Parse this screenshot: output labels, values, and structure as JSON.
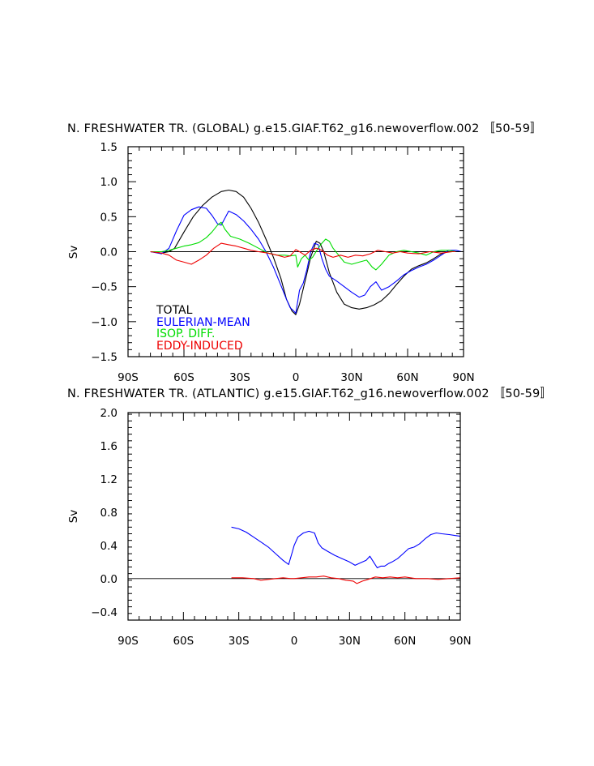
{
  "chart_data": [
    {
      "type": "line",
      "title": "N. FRESHWATER TR. (GLOBAL) g.e15.GIAF.T62_g16.newoverflow.002 〚50-59〛",
      "xlabel": "",
      "ylabel": "Sv",
      "xlim": [
        -90,
        90
      ],
      "ylim": [
        -1.5,
        1.5
      ],
      "yticks": [
        -1.5,
        -1.0,
        -0.5,
        0.0,
        0.5,
        1.0,
        1.5
      ],
      "ytick_labels": [
        "−1.5",
        "−1.0",
        "−0.5",
        "0.0",
        "0.5",
        "1.0",
        "1.5"
      ],
      "xticks": [
        -90,
        -60,
        -30,
        0,
        30,
        60,
        90
      ],
      "xtick_labels": [
        "90S",
        "60S",
        "30S",
        "0",
        "30N",
        "60N",
        "90N"
      ],
      "legend_position": "bottom-left",
      "series": [
        {
          "name": "TOTAL",
          "color": "#000000",
          "x": [
            -78,
            -72,
            -68,
            -65,
            -60,
            -55,
            -50,
            -45,
            -40,
            -36,
            -32,
            -28,
            -24,
            -20,
            -16,
            -12,
            -8,
            -5,
            -2,
            0,
            2,
            5,
            8,
            11,
            13,
            15,
            18,
            22,
            26,
            30,
            34,
            38,
            42,
            46,
            50,
            54,
            58,
            62,
            66,
            70,
            74,
            78,
            82,
            86,
            89
          ],
          "y": [
            0.0,
            -0.02,
            0.0,
            0.05,
            0.28,
            0.5,
            0.66,
            0.78,
            0.86,
            0.88,
            0.86,
            0.78,
            0.62,
            0.42,
            0.18,
            -0.08,
            -0.38,
            -0.68,
            -0.85,
            -0.9,
            -0.75,
            -0.42,
            -0.08,
            0.15,
            0.12,
            0.0,
            -0.3,
            -0.58,
            -0.75,
            -0.8,
            -0.82,
            -0.8,
            -0.76,
            -0.7,
            -0.6,
            -0.47,
            -0.35,
            -0.25,
            -0.2,
            -0.16,
            -0.1,
            -0.03,
            0.0,
            0.0,
            0.0
          ]
        },
        {
          "name": "EULERIAN-MEAN",
          "color": "#0000ff",
          "x": [
            -78,
            -72,
            -68,
            -64,
            -60,
            -56,
            -52,
            -48,
            -45,
            -42,
            -40,
            -38,
            -36,
            -32,
            -28,
            -24,
            -20,
            -16,
            -12,
            -8,
            -5,
            -3,
            -1,
            0,
            2,
            4,
            6,
            8,
            10,
            12,
            14,
            16,
            18,
            22,
            26,
            30,
            34,
            37,
            40,
            43,
            46,
            50,
            54,
            58,
            62,
            66,
            70,
            74,
            78,
            82,
            86,
            89
          ],
          "y": [
            0.0,
            -0.03,
            0.05,
            0.3,
            0.52,
            0.6,
            0.64,
            0.62,
            0.52,
            0.4,
            0.38,
            0.48,
            0.58,
            0.53,
            0.44,
            0.32,
            0.18,
            0.0,
            -0.22,
            -0.48,
            -0.68,
            -0.8,
            -0.85,
            -0.88,
            -0.55,
            -0.45,
            -0.25,
            0.0,
            0.12,
            0.1,
            -0.1,
            -0.25,
            -0.35,
            -0.42,
            -0.5,
            -0.58,
            -0.65,
            -0.62,
            -0.5,
            -0.43,
            -0.55,
            -0.5,
            -0.42,
            -0.33,
            -0.27,
            -0.22,
            -0.18,
            -0.12,
            -0.05,
            0.02,
            0.02,
            0.0
          ]
        },
        {
          "name": "ISOP. DIFF.",
          "color": "#00dd00",
          "x": [
            -78,
            -72,
            -68,
            -64,
            -60,
            -56,
            -52,
            -48,
            -45,
            -42,
            -40,
            -38,
            -35,
            -30,
            -25,
            -20,
            -15,
            -10,
            -6,
            -3,
            0,
            1,
            3,
            5,
            7,
            9,
            12,
            14,
            16,
            18,
            20,
            23,
            26,
            30,
            34,
            38,
            41,
            43,
            46,
            50,
            54,
            58,
            62,
            66,
            70,
            74,
            78,
            82,
            86,
            89
          ],
          "y": [
            0.0,
            0.0,
            0.02,
            0.05,
            0.08,
            0.1,
            0.13,
            0.2,
            0.28,
            0.38,
            0.42,
            0.32,
            0.22,
            0.18,
            0.12,
            0.05,
            -0.02,
            -0.05,
            -0.05,
            -0.06,
            -0.05,
            -0.22,
            -0.1,
            -0.05,
            -0.12,
            -0.08,
            0.05,
            0.12,
            0.18,
            0.15,
            0.05,
            -0.05,
            -0.15,
            -0.18,
            -0.15,
            -0.12,
            -0.22,
            -0.26,
            -0.18,
            -0.05,
            0.0,
            0.02,
            0.0,
            -0.02,
            -0.05,
            0.0,
            0.02,
            0.02,
            0.0,
            0.0
          ]
        },
        {
          "name": "EDDY-INDUCED",
          "color": "#ee0000",
          "x": [
            -78,
            -72,
            -68,
            -64,
            -60,
            -56,
            -52,
            -48,
            -44,
            -40,
            -36,
            -32,
            -28,
            -24,
            -20,
            -15,
            -10,
            -6,
            -3,
            0,
            2,
            5,
            8,
            11,
            14,
            17,
            20,
            24,
            28,
            32,
            36,
            40,
            44,
            48,
            52,
            56,
            60,
            66,
            72,
            78,
            84,
            89
          ],
          "y": [
            0.0,
            -0.02,
            -0.05,
            -0.12,
            -0.15,
            -0.18,
            -0.12,
            -0.05,
            0.05,
            0.12,
            0.1,
            0.08,
            0.05,
            0.02,
            0.0,
            -0.02,
            -0.05,
            -0.08,
            -0.06,
            0.03,
            0.0,
            -0.05,
            0.02,
            0.05,
            0.02,
            -0.05,
            -0.08,
            -0.05,
            -0.08,
            -0.05,
            -0.06,
            -0.03,
            0.02,
            0.0,
            -0.02,
            0.0,
            -0.02,
            -0.03,
            0.0,
            -0.02,
            0.0,
            0.0
          ]
        }
      ]
    },
    {
      "type": "line",
      "title": "N. FRESHWATER TR. (ATLANTIC) g.e15.GIAF.T62_g16.newoverflow.002 〚50-59〛",
      "xlabel": "",
      "ylabel": "Sv",
      "xlim": [
        -90,
        90
      ],
      "ylim": [
        -0.5,
        2.0
      ],
      "yticks": [
        -0.4,
        0.0,
        0.4,
        0.8,
        1.2,
        1.6,
        2.0
      ],
      "ytick_labels": [
        "−0.4",
        "0.0",
        "0.4",
        "0.8",
        "1.2",
        "1.6",
        "2.0"
      ],
      "xticks": [
        -90,
        -60,
        -30,
        0,
        30,
        60,
        90
      ],
      "xtick_labels": [
        "90S",
        "60S",
        "30S",
        "0",
        "30N",
        "60N",
        "90N"
      ],
      "series": [
        {
          "name": "EULERIAN-MEAN",
          "color": "#0000ff",
          "x": [
            -34,
            -30,
            -26,
            -22,
            -18,
            -14,
            -10,
            -6,
            -3,
            -1,
            0,
            2,
            5,
            8,
            11,
            13,
            15,
            18,
            22,
            26,
            30,
            33,
            36,
            39,
            41,
            43,
            45,
            47,
            49,
            51,
            53,
            56,
            59,
            62,
            65,
            68,
            71,
            74,
            77,
            80,
            84,
            87,
            90
          ],
          "y": [
            0.62,
            0.6,
            0.56,
            0.5,
            0.44,
            0.38,
            0.3,
            0.22,
            0.17,
            0.32,
            0.4,
            0.5,
            0.55,
            0.57,
            0.55,
            0.43,
            0.37,
            0.33,
            0.28,
            0.24,
            0.2,
            0.16,
            0.19,
            0.22,
            0.27,
            0.2,
            0.13,
            0.15,
            0.15,
            0.18,
            0.2,
            0.24,
            0.3,
            0.36,
            0.38,
            0.42,
            0.48,
            0.53,
            0.55,
            0.54,
            0.53,
            0.52,
            0.51
          ]
        },
        {
          "name": "EDDY-INDUCED",
          "color": "#ee0000",
          "x": [
            -34,
            -28,
            -22,
            -18,
            -14,
            -10,
            -6,
            -2,
            0,
            4,
            8,
            12,
            16,
            20,
            24,
            28,
            32,
            34,
            37,
            40,
            44,
            48,
            52,
            56,
            60,
            66,
            72,
            78,
            84,
            90
          ],
          "y": [
            0.01,
            0.01,
            0.0,
            -0.02,
            -0.01,
            0.0,
            0.01,
            0.0,
            0.0,
            0.01,
            0.02,
            0.02,
            0.03,
            0.01,
            0.0,
            -0.02,
            -0.03,
            -0.06,
            -0.03,
            -0.01,
            0.02,
            0.01,
            0.02,
            0.01,
            0.02,
            0.0,
            0.0,
            -0.01,
            0.0,
            0.01
          ]
        },
        {
          "name": "TOTAL",
          "color": "#000000",
          "x": [
            -90,
            90
          ],
          "y": [
            0.0,
            0.0
          ]
        }
      ]
    }
  ]
}
